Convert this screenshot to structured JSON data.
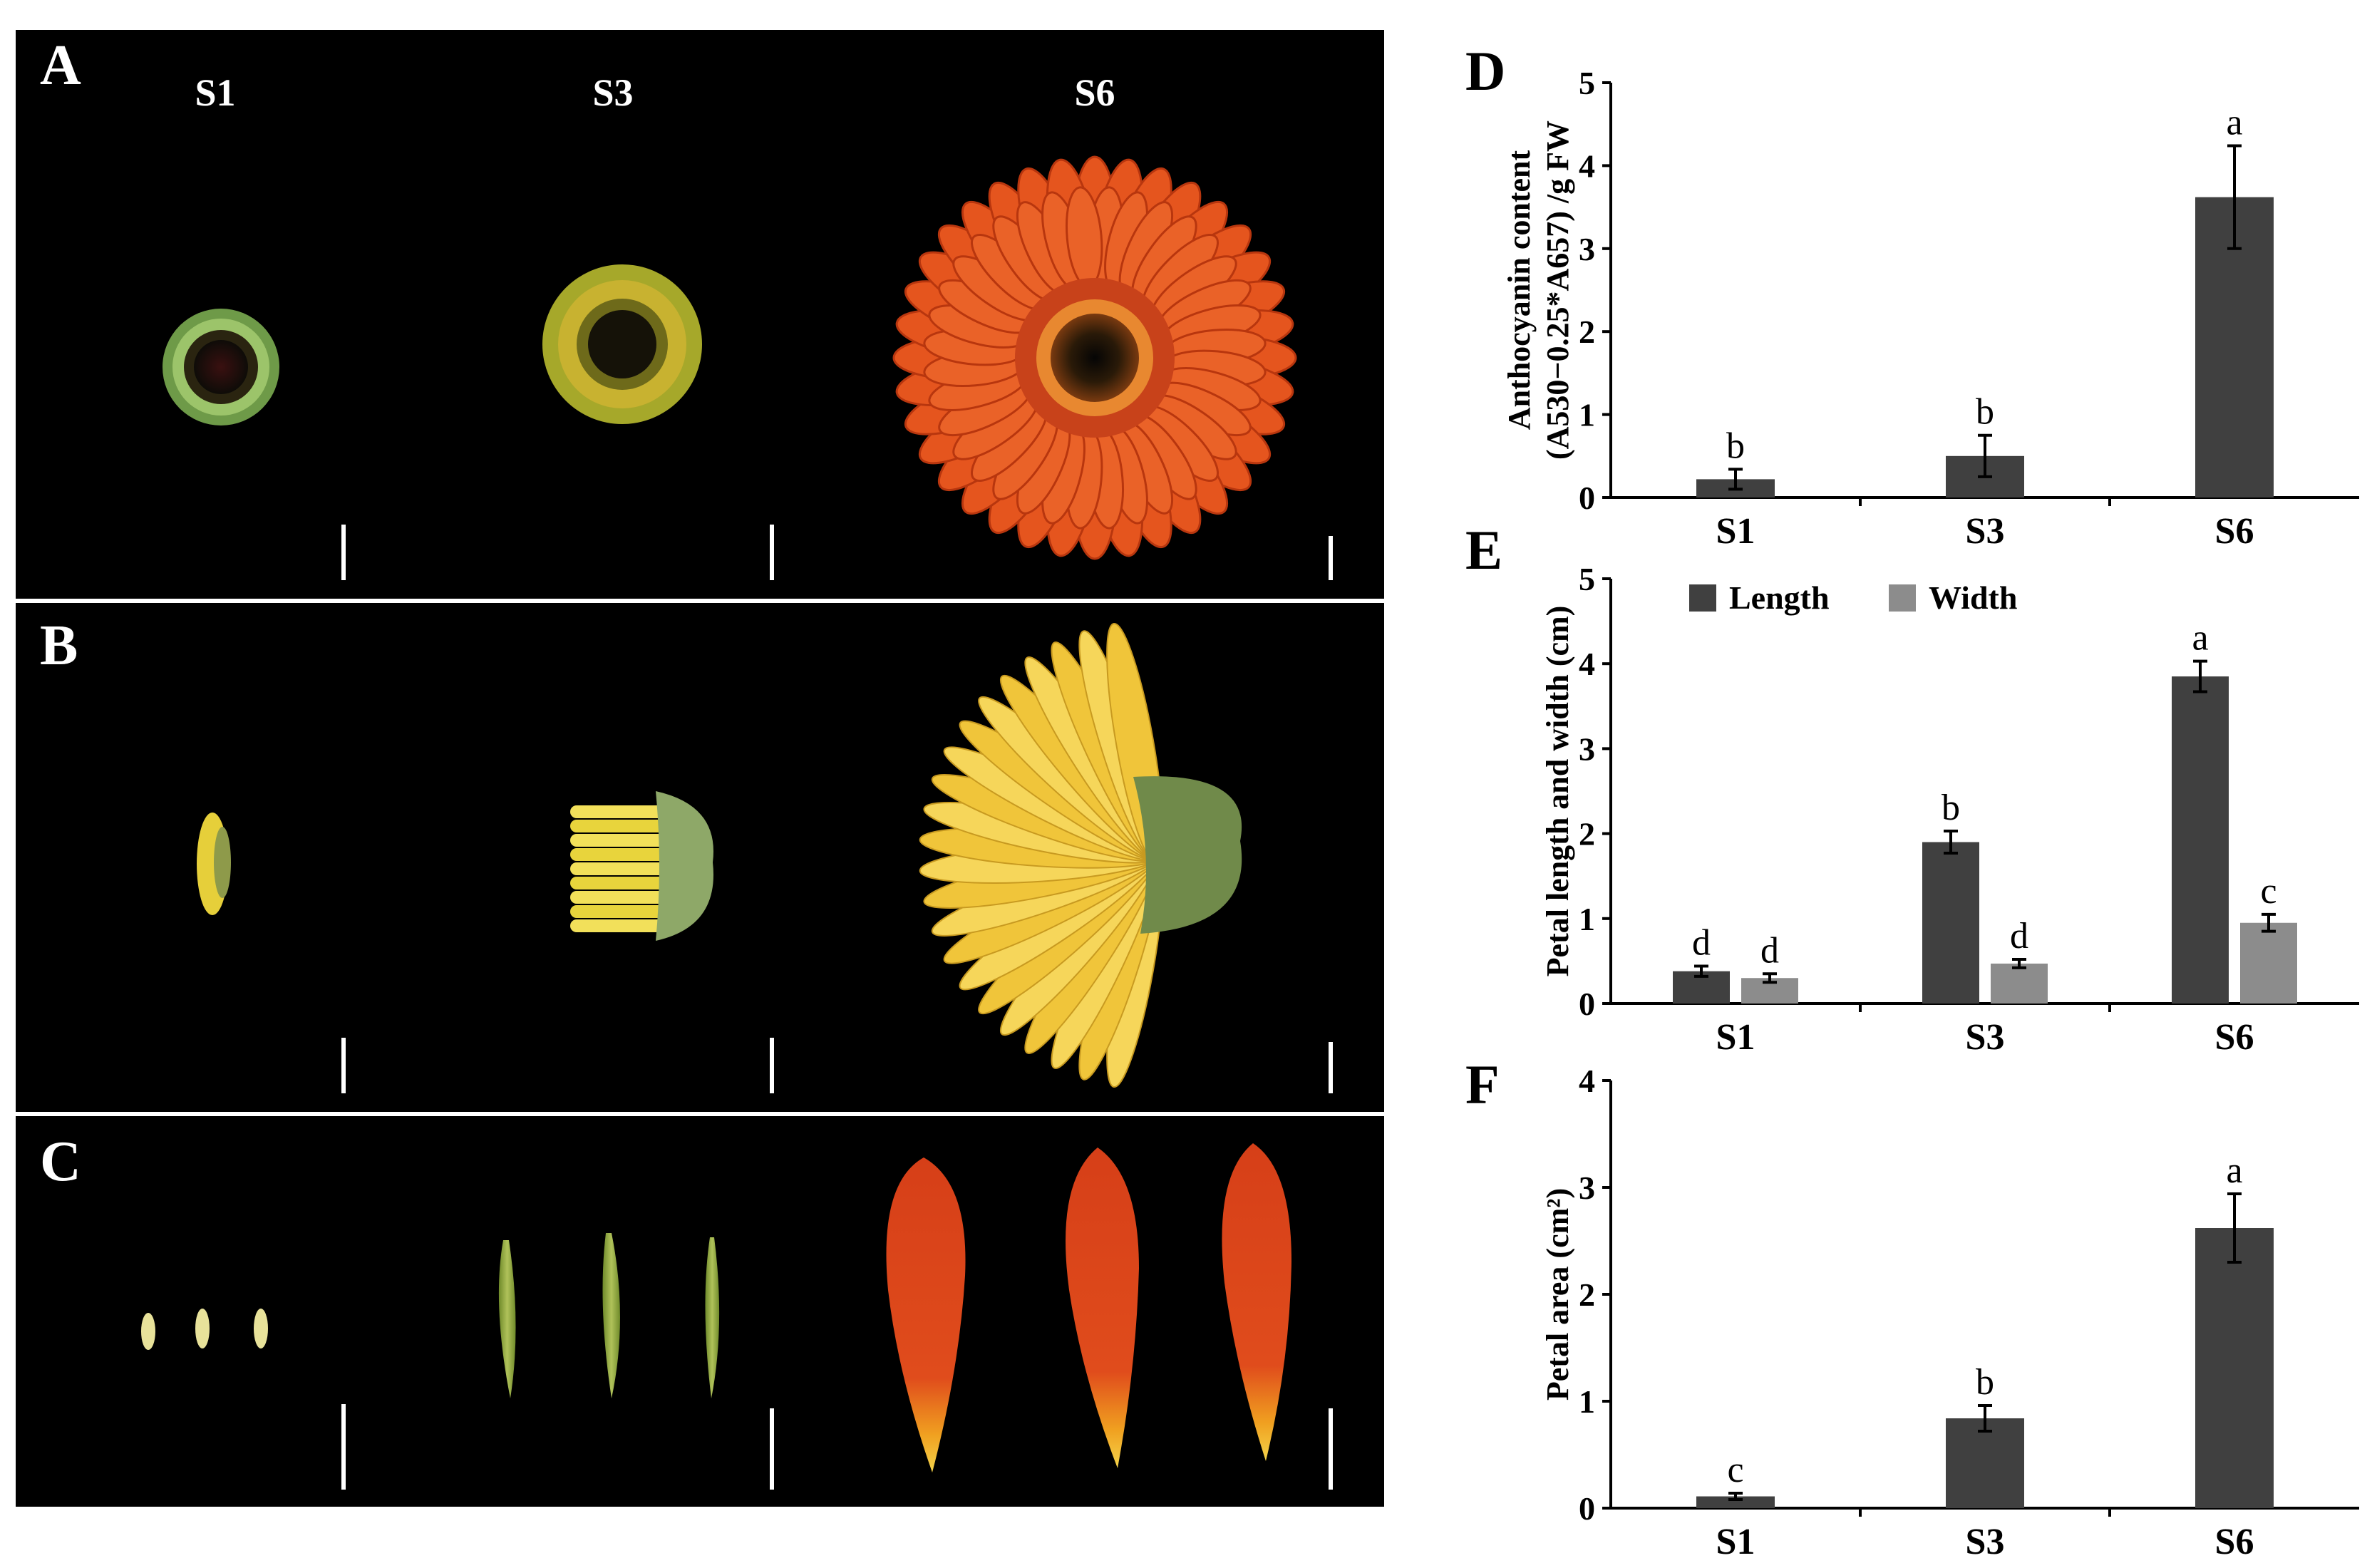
{
  "panels": {
    "A": "A",
    "B": "B",
    "C": "C",
    "D": "D",
    "E": "E",
    "F": "F"
  },
  "stages": [
    "S1",
    "S3",
    "S6"
  ],
  "colors": {
    "photo_bg": "#000000",
    "bar_dark": "#404040",
    "bar_light": "#8c8c8c",
    "petal_orange": "#e0521c",
    "petal_yellow": "#f0c63a",
    "bud_green": "#8fb04a"
  },
  "chart_data": [
    {
      "id": "D",
      "type": "bar",
      "categories": [
        "S1",
        "S3",
        "S6"
      ],
      "series": [
        {
          "name": "Anthocyanin",
          "values": [
            0.22,
            0.5,
            3.62
          ],
          "errors": [
            0.12,
            0.25,
            0.62
          ],
          "letters": [
            "b",
            "b",
            "a"
          ]
        }
      ],
      "ylabel_line1": "Anthocyanin  content",
      "ylabel_line2": "(A530−0.25*A657) /g FW",
      "ylim": [
        0,
        5
      ],
      "yticks": [
        "0",
        "1",
        "2",
        "3",
        "4",
        "5"
      ]
    },
    {
      "id": "E",
      "type": "bar",
      "categories": [
        "S1",
        "S3",
        "S6"
      ],
      "series": [
        {
          "name": "Length",
          "values": [
            0.38,
            1.9,
            3.85
          ],
          "errors": [
            0.06,
            0.13,
            0.18
          ],
          "letters": [
            "d",
            "b",
            "a"
          ]
        },
        {
          "name": "Width",
          "values": [
            0.3,
            0.47,
            0.95
          ],
          "errors": [
            0.05,
            0.05,
            0.1
          ],
          "letters": [
            "d",
            "d",
            "c"
          ]
        }
      ],
      "ylabel": "Petal length and width (cm)",
      "ylim": [
        0,
        5
      ],
      "yticks": [
        "0",
        "1",
        "2",
        "3",
        "4",
        "5"
      ],
      "legend": "top-left"
    },
    {
      "id": "F",
      "type": "bar",
      "categories": [
        "S1",
        "S3",
        "S6"
      ],
      "series": [
        {
          "name": "Area",
          "values": [
            0.11,
            0.84,
            2.62
          ],
          "errors": [
            0.03,
            0.12,
            0.32
          ],
          "letters": [
            "c",
            "b",
            "a"
          ]
        }
      ],
      "ylabel": "Petal area (cm²)",
      "ylim": [
        0,
        4
      ],
      "yticks": [
        "0",
        "1",
        "2",
        "3",
        "4"
      ]
    }
  ]
}
